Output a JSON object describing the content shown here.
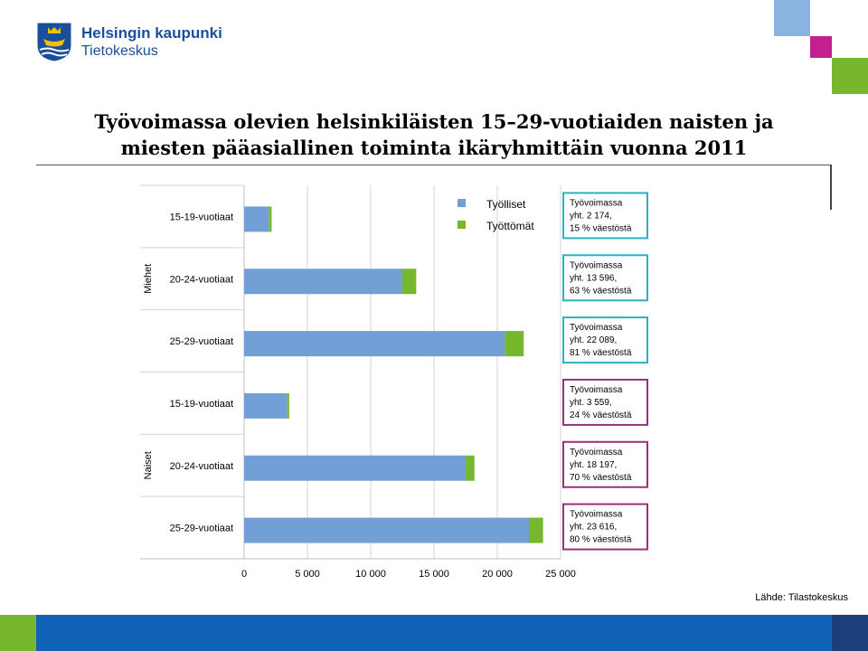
{
  "header": {
    "org_name": "Helsingin kaupunki",
    "unit_name": "Tietokeskus",
    "logo_icon": "helsinki-coat-of-arms-icon"
  },
  "title": {
    "line1": "Työvoimassa olevien helsinkiläisten 15–29-vuotiaiden naisten ja",
    "line2": "miesten pääasiallinen toiminta ikäryhmittäin vuonna 2011"
  },
  "source": "Lähde: Tilastokeskus",
  "colors": {
    "employed": "#72a0d6",
    "unemployed": "#77b72d",
    "men_box": "#2eb0c4",
    "women_box": "#9c2f7d",
    "brand_blue": "#1b4f9c",
    "deco_light_blue": "#89b3e0",
    "deco_magenta": "#c2208d",
    "deco_green": "#77b72d",
    "footer_blue": "#0f62b8",
    "footer_dark": "#1b3f7a"
  },
  "chart_data": {
    "type": "bar",
    "orientation": "horizontal",
    "stacked": true,
    "title": "",
    "xlabel": "",
    "ylabel": "",
    "xlim": [
      0,
      25000
    ],
    "xticks": [
      0,
      5000,
      10000,
      15000,
      20000,
      25000
    ],
    "xtick_labels": [
      "0",
      "5 000",
      "10 000",
      "15 000",
      "20 000",
      "25 000"
    ],
    "legend_position": "top-right",
    "gridlines": true,
    "groups": [
      {
        "label": "Miehet",
        "categories": [
          "15-19-vuotiaat",
          "20-24-vuotiaat",
          "25-29-vuotiaat"
        ],
        "annotations": [
          {
            "line1": "Työvoimassa",
            "line2": "yht. 2 174,",
            "line3": "15 % väestöstä"
          },
          {
            "line1": "Työvoimassa",
            "line2": "yht. 13 596,",
            "line3": "63 % väestöstä"
          },
          {
            "line1": "Työvoimassa",
            "line2": "yht. 22 089,",
            "line3": "81 % väestöstä"
          }
        ]
      },
      {
        "label": "Naiset",
        "categories": [
          "15-19-vuotiaat",
          "20-24-vuotiaat",
          "25-29-vuotiaat"
        ],
        "annotations": [
          {
            "line1": "Työvoimassa",
            "line2": "yht. 3 559,",
            "line3": "24 % väestöstä"
          },
          {
            "line1": "Työvoimassa",
            "line2": "yht. 18 197,",
            "line3": "70 % väestöstä"
          },
          {
            "line1": "Työvoimassa",
            "line2": "yht. 23 616,",
            "line3": "80 % väestöstä"
          }
        ]
      }
    ],
    "series": [
      {
        "name": "Työlliset",
        "values": [
          1950,
          12500,
          20600,
          3380,
          17500,
          22500
        ]
      },
      {
        "name": "Työttömät",
        "values": [
          224,
          1096,
          1489,
          179,
          697,
          1116
        ]
      }
    ]
  }
}
